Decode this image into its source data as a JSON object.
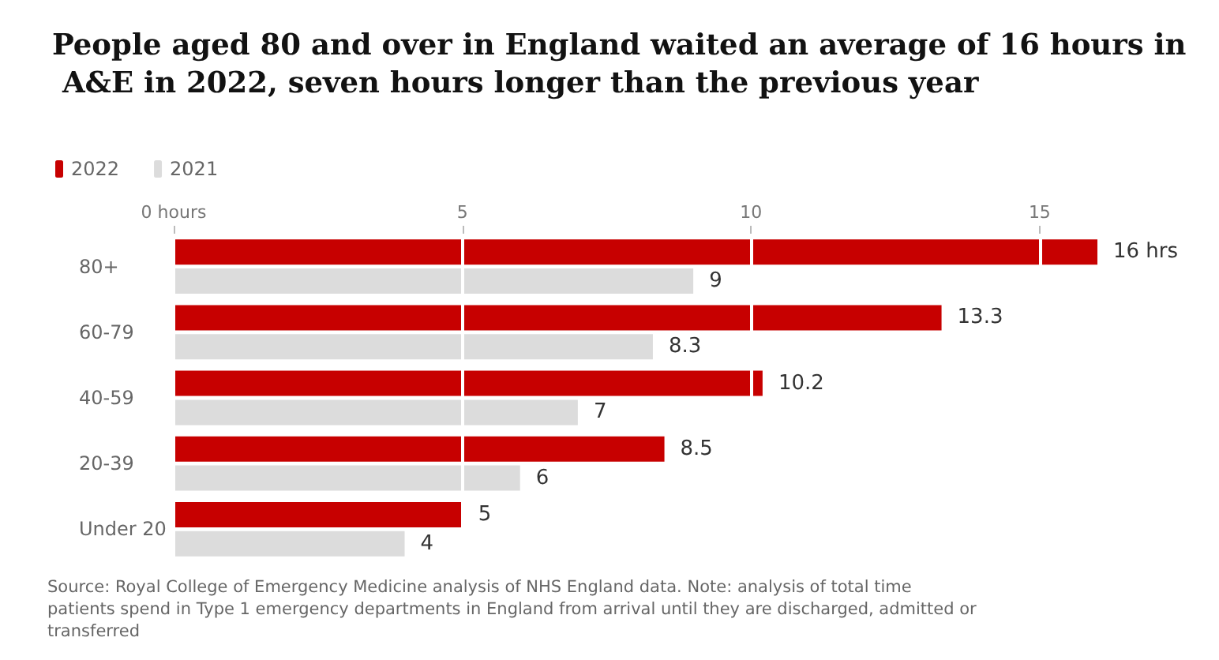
{
  "chart_data": {
    "type": "bar",
    "orientation": "horizontal",
    "title": "People aged 80 and over in England waited an average of 16 hours in A&E in 2022, seven hours longer than the previous year",
    "categories": [
      "80+",
      "60-79",
      "40-59",
      "20-39",
      "Under 20"
    ],
    "series": [
      {
        "name": "2022",
        "color": "#c70000",
        "values": [
          16,
          13.3,
          10.2,
          8.5,
          5
        ],
        "value_labels": [
          "16 hrs",
          "13.3",
          "10.2",
          "8.5",
          "5"
        ]
      },
      {
        "name": "2021",
        "color": "#dcdcdc",
        "values": [
          9,
          8.3,
          7,
          6,
          4
        ],
        "value_labels": [
          "9",
          "8.3",
          "7",
          "6",
          "4"
        ]
      }
    ],
    "xlim": [
      0,
      16
    ],
    "xticks": [
      {
        "value": 0,
        "label": "0 hours"
      },
      5,
      10,
      15
    ],
    "grid": "x",
    "legend": "top left",
    "annotations": [
      "Source: Royal College of Emergency Medicine analysis of NHS England data. Note: analysis of total time patients spend in Type 1 emergency departments in England from arrival until they are discharged, admitted or transferred"
    ]
  }
}
